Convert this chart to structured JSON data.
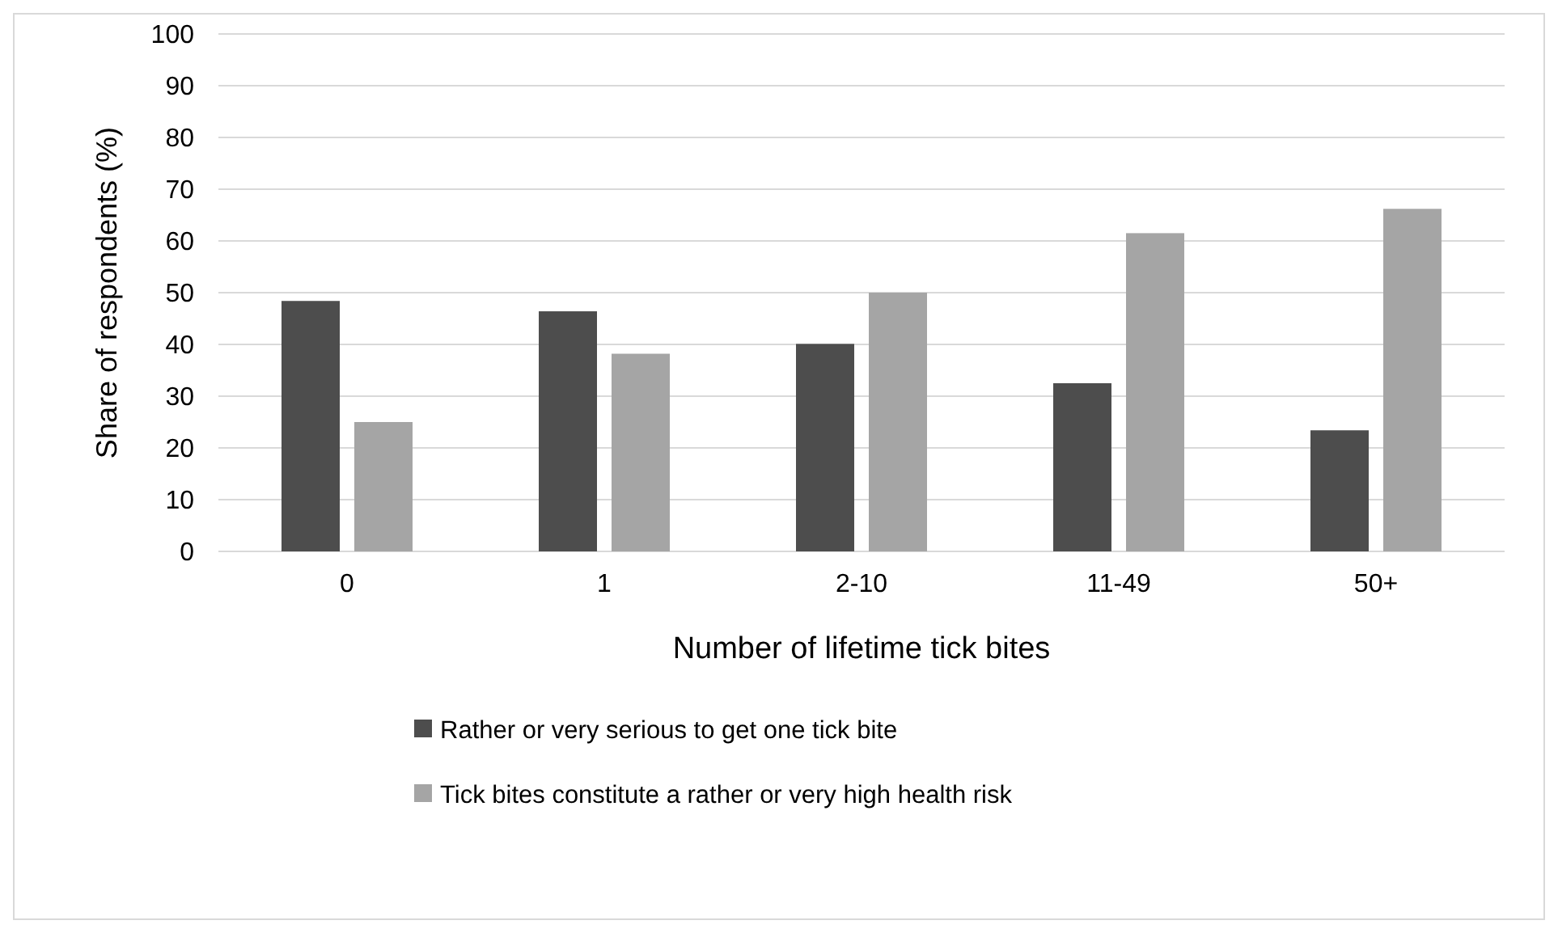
{
  "chart_data": {
    "type": "bar",
    "xlabel": "Number of lifetime tick bites",
    "ylabel": "Share of respondents (%)",
    "categories": [
      "0",
      "1",
      "2-10",
      "11-49",
      "50+"
    ],
    "series": [
      {
        "name": "Rather or very serious to get one tick bite",
        "color": "#4d4d4d",
        "values": [
          48.4,
          46.4,
          40.1,
          32.5,
          23.4
        ]
      },
      {
        "name": "Tick bites constitute a rather or very high health risk",
        "color": "#a5a5a5",
        "values": [
          25,
          38.2,
          50,
          61.5,
          66.2
        ]
      }
    ],
    "ylim": [
      0,
      100
    ],
    "yticks": [
      0,
      10,
      20,
      30,
      40,
      50,
      60,
      70,
      80,
      90,
      100
    ],
    "grid": "y",
    "legend": "bottom"
  }
}
